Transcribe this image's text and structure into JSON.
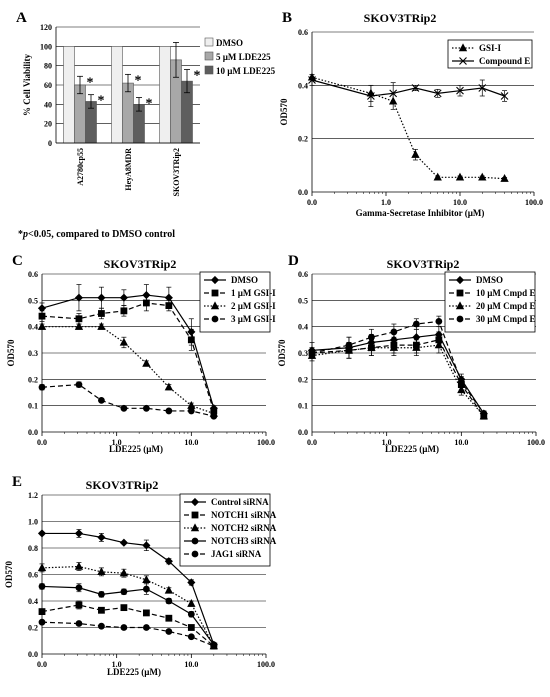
{
  "panels": {
    "A": {
      "letter": "A"
    },
    "B": {
      "letter": "B"
    },
    "C": {
      "letter": "C"
    },
    "D": {
      "letter": "D"
    },
    "E": {
      "letter": "E"
    }
  },
  "footnote": {
    "star": "*",
    "p": "p",
    "rest": "<0.05, compared to DMSO control"
  },
  "chart_data": [
    {
      "id": "A",
      "type": "bar",
      "title": "",
      "ylabel": "% Cell Viability",
      "ylim": [
        0,
        120
      ],
      "yticks": [
        "0",
        "20",
        "40",
        "60",
        "80",
        "100",
        "120"
      ],
      "categories": [
        "A2780cp55",
        "HeyA8MDR",
        "SKOV3TRip2"
      ],
      "grid": true,
      "legend": "top-right",
      "series": [
        {
          "name": "DMSO",
          "color": "#efefef",
          "values": [
            100,
            100,
            100
          ],
          "errors": [
            0,
            0,
            0
          ],
          "significant": [
            false,
            false,
            false
          ]
        },
        {
          "name": "5 µM LDE225",
          "color": "#a8a8a8",
          "values": [
            60,
            62,
            86
          ],
          "errors": [
            9,
            9,
            18
          ],
          "significant": [
            true,
            true,
            false
          ]
        },
        {
          "name": "10 µM LDE225",
          "color": "#5e5e5e",
          "values": [
            43,
            40,
            64
          ],
          "errors": [
            7,
            7,
            12
          ],
          "significant": [
            true,
            true,
            true
          ]
        }
      ]
    },
    {
      "id": "B",
      "type": "line",
      "title": "SKOV3TRip2",
      "xlabel": "Gamma-Secretase Inhibitor (µM)",
      "ylabel": "OD570",
      "xscale": "log",
      "xlim": [
        0.1,
        100
      ],
      "xticks": [
        "0.0",
        "1.0",
        "10.0",
        "100.0"
      ],
      "ylim": [
        0,
        0.6
      ],
      "yticks": [
        "0.0",
        "0.2",
        "0.4",
        "0.6"
      ],
      "grid": true,
      "legend": "top-right",
      "series": [
        {
          "name": "GSI-I",
          "style": "dotted",
          "marker": "triangle",
          "x": [
            0.1,
            0.625,
            1.25,
            2.5,
            5,
            10,
            20,
            40
          ],
          "y": [
            0.43,
            0.37,
            0.34,
            0.14,
            0.055,
            0.055,
            0.055,
            0.05
          ],
          "err": [
            0.01,
            0.03,
            0.03,
            0.02,
            0.005,
            0.005,
            0.005,
            0.005
          ]
        },
        {
          "name": "Compound E",
          "style": "solid",
          "marker": "x",
          "x": [
            0.1,
            0.625,
            1.25,
            2.5,
            5,
            10,
            20,
            40
          ],
          "y": [
            0.42,
            0.36,
            0.37,
            0.39,
            0.37,
            0.38,
            0.39,
            0.36
          ],
          "err": [
            0.02,
            0.04,
            0.04,
            0.01,
            0.015,
            0.02,
            0.03,
            0.02
          ]
        }
      ]
    },
    {
      "id": "C",
      "type": "line",
      "title": "SKOV3TRip2",
      "xlabel": "LDE225 (µM)",
      "ylabel": "OD570",
      "xscale": "log",
      "xlim": [
        0.1,
        100
      ],
      "xticks": [
        "0.0",
        "1.0",
        "10.0",
        "100.0"
      ],
      "ylim": [
        0,
        0.6
      ],
      "yticks": [
        "0.0",
        "0.1",
        "0.2",
        "0.3",
        "0.4",
        "0.5",
        "0.6"
      ],
      "grid": true,
      "legend": "top-right",
      "series": [
        {
          "name": "DMSO",
          "style": "solid",
          "marker": "diamond",
          "x": [
            0.1,
            0.3125,
            0.625,
            1.25,
            2.5,
            5,
            10,
            20
          ],
          "y": [
            0.47,
            0.51,
            0.51,
            0.51,
            0.52,
            0.51,
            0.38,
            0.09
          ],
          "err": [
            0.02,
            0.05,
            0.04,
            0.03,
            0.04,
            0.04,
            0.05,
            0.01
          ]
        },
        {
          "name": "1 µM GSI-I",
          "style": "dashed",
          "marker": "square",
          "x": [
            0.1,
            0.3125,
            0.625,
            1.25,
            2.5,
            5,
            10,
            20
          ],
          "y": [
            0.44,
            0.43,
            0.45,
            0.46,
            0.49,
            0.48,
            0.35,
            0.08
          ],
          "err": [
            0.02,
            0.02,
            0.02,
            0.02,
            0.03,
            0.02,
            0.04,
            0.01
          ]
        },
        {
          "name": "2 µM GSI-I",
          "style": "dotted",
          "marker": "triangle",
          "x": [
            0.1,
            0.3125,
            0.625,
            1.25,
            2.5,
            5,
            10,
            20
          ],
          "y": [
            0.4,
            0.4,
            0.4,
            0.34,
            0.26,
            0.17,
            0.1,
            0.07
          ],
          "err": [
            0.01,
            0.01,
            0.01,
            0.02,
            0.01,
            0.01,
            0.01,
            0.005
          ]
        },
        {
          "name": "3 µM GSI-I",
          "style": "dashed",
          "marker": "circle",
          "x": [
            0.1,
            0.3125,
            0.625,
            1.25,
            2.5,
            5,
            10,
            20
          ],
          "y": [
            0.17,
            0.18,
            0.12,
            0.09,
            0.09,
            0.08,
            0.08,
            0.06
          ],
          "err": [
            0.01,
            0.01,
            0.005,
            0.005,
            0.005,
            0.005,
            0.005,
            0.005
          ]
        }
      ]
    },
    {
      "id": "D",
      "type": "line",
      "title": "SKOV3TRip2",
      "xlabel": "LDE225 (µM)",
      "ylabel": "OD570",
      "xscale": "log",
      "xlim": [
        0.1,
        100
      ],
      "xticks": [
        "0.0",
        "1.0",
        "10.0",
        "100.0"
      ],
      "ylim": [
        0,
        0.6
      ],
      "yticks": [
        "0.0",
        "0.1",
        "0.2",
        "0.3",
        "0.4",
        "0.5",
        "0.6"
      ],
      "grid": true,
      "legend": "top-right",
      "series": [
        {
          "name": "DMSO",
          "style": "solid",
          "marker": "diamond",
          "x": [
            0.1,
            0.3125,
            0.625,
            1.25,
            2.5,
            5,
            10,
            20
          ],
          "y": [
            0.31,
            0.32,
            0.34,
            0.35,
            0.36,
            0.37,
            0.2,
            0.07
          ],
          "err": [
            0.03,
            0.04,
            0.03,
            0.03,
            0.03,
            0.03,
            0.02,
            0.01
          ]
        },
        {
          "name": "10 µM Cmpd E",
          "style": "dashed",
          "marker": "square",
          "x": [
            0.1,
            0.3125,
            0.625,
            1.25,
            2.5,
            5,
            10,
            20
          ],
          "y": [
            0.3,
            0.31,
            0.32,
            0.33,
            0.33,
            0.35,
            0.18,
            0.06
          ],
          "err": [
            0.02,
            0.03,
            0.03,
            0.03,
            0.03,
            0.03,
            0.02,
            0.01
          ]
        },
        {
          "name": "20 µM Cmpd E",
          "style": "dotted",
          "marker": "triangle",
          "x": [
            0.1,
            0.3125,
            0.625,
            1.25,
            2.5,
            5,
            10,
            20
          ],
          "y": [
            0.29,
            0.31,
            0.32,
            0.32,
            0.32,
            0.33,
            0.16,
            0.06
          ],
          "err": [
            0.02,
            0.03,
            0.03,
            0.03,
            0.03,
            0.03,
            0.02,
            0.01
          ]
        },
        {
          "name": "30 µM Cmpd E",
          "style": "dashed",
          "marker": "circle",
          "x": [
            0.1,
            0.3125,
            0.625,
            1.25,
            2.5,
            5,
            10,
            20
          ],
          "y": [
            0.3,
            0.33,
            0.36,
            0.38,
            0.41,
            0.42,
            0.19,
            0.07
          ],
          "err": [
            0.02,
            0.03,
            0.03,
            0.03,
            0.02,
            0.02,
            0.02,
            0.01
          ]
        }
      ]
    },
    {
      "id": "E",
      "type": "line",
      "title": "SKOV3TRip2",
      "xlabel": "LDE225 (µM)",
      "ylabel": "OD570",
      "xscale": "log",
      "xlim": [
        0.1,
        100
      ],
      "xticks": [
        "0.0",
        "1.0",
        "10.0",
        "100.0"
      ],
      "ylim": [
        0,
        1.2
      ],
      "yticks": [
        "0.0",
        "0.2",
        "0.4",
        "0.6",
        "0.8",
        "1.0",
        "1.2"
      ],
      "grid": true,
      "legend": "top-right",
      "series": [
        {
          "name": "Control siRNA",
          "style": "solid",
          "marker": "diamond",
          "x": [
            0.1,
            0.3125,
            0.625,
            1.25,
            2.5,
            5,
            10,
            20
          ],
          "y": [
            0.91,
            0.91,
            0.88,
            0.84,
            0.82,
            0.7,
            0.54,
            0.07
          ],
          "err": [
            0.01,
            0.03,
            0.03,
            0.01,
            0.04,
            0.02,
            0.02,
            0.01
          ]
        },
        {
          "name": "NOTCH1 siRNA",
          "style": "dashed",
          "marker": "square",
          "x": [
            0.1,
            0.3125,
            0.625,
            1.25,
            2.5,
            5,
            10,
            20
          ],
          "y": [
            0.32,
            0.37,
            0.33,
            0.35,
            0.31,
            0.27,
            0.2,
            0.06
          ],
          "err": [
            0.02,
            0.03,
            0.02,
            0.02,
            0.02,
            0.02,
            0.02,
            0.01
          ]
        },
        {
          "name": "NOTCH2 siRNA",
          "style": "dotted",
          "marker": "triangle",
          "x": [
            0.1,
            0.3125,
            0.625,
            1.25,
            2.5,
            5,
            10,
            20
          ],
          "y": [
            0.65,
            0.66,
            0.62,
            0.61,
            0.56,
            0.48,
            0.38,
            0.06
          ],
          "err": [
            0.03,
            0.03,
            0.03,
            0.03,
            0.03,
            0.02,
            0.02,
            0.01
          ]
        },
        {
          "name": "NOTCH3 siRNA",
          "style": "solid",
          "marker": "circle",
          "x": [
            0.1,
            0.3125,
            0.625,
            1.25,
            2.5,
            5,
            10,
            20
          ],
          "y": [
            0.51,
            0.5,
            0.45,
            0.47,
            0.49,
            0.4,
            0.3,
            0.07
          ],
          "err": [
            0.02,
            0.03,
            0.02,
            0.02,
            0.04,
            0.02,
            0.02,
            0.01
          ]
        },
        {
          "name": "JAG1 siRNA",
          "style": "dashed",
          "marker": "circle",
          "x": [
            0.1,
            0.3125,
            0.625,
            1.25,
            2.5,
            5,
            10,
            20
          ],
          "y": [
            0.24,
            0.23,
            0.21,
            0.2,
            0.2,
            0.17,
            0.13,
            0.06
          ],
          "err": [
            0.01,
            0.01,
            0.01,
            0.01,
            0.01,
            0.01,
            0.01,
            0.005
          ]
        }
      ]
    }
  ]
}
